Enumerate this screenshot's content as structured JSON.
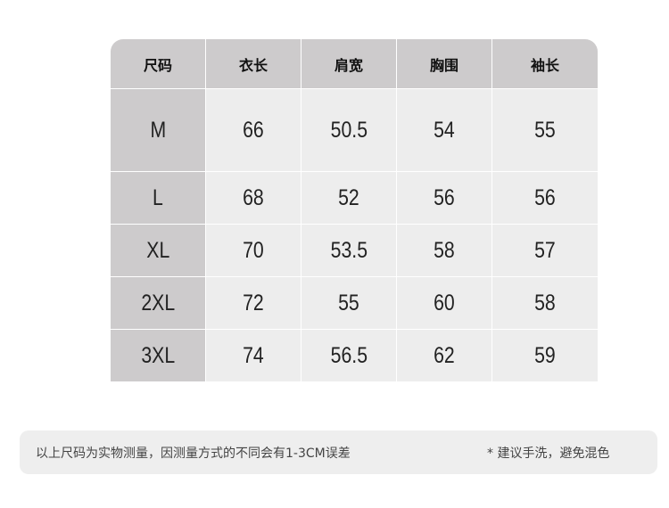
{
  "table": {
    "headers": [
      "尺码",
      "衣长",
      "肩宽",
      "胸围",
      "袖长"
    ],
    "rows": [
      [
        "M",
        "66",
        "50.5",
        "54",
        "55"
      ],
      [
        "L",
        "68",
        "52",
        "56",
        "56"
      ],
      [
        "XL",
        "70",
        "53.5",
        "58",
        "57"
      ],
      [
        "2XL",
        "72",
        "55",
        "60",
        "58"
      ],
      [
        "3XL",
        "74",
        "56.5",
        "62",
        "59"
      ]
    ]
  },
  "footer": {
    "note": "以上尺码为实物测量，因测量方式的不同会有1-3CM误差",
    "care": "* 建议手洗，避免混色"
  },
  "colors": {
    "header_bg": "#cdcbcc",
    "cell_bg": "#ededed",
    "footer_bg": "#eeeeee"
  }
}
